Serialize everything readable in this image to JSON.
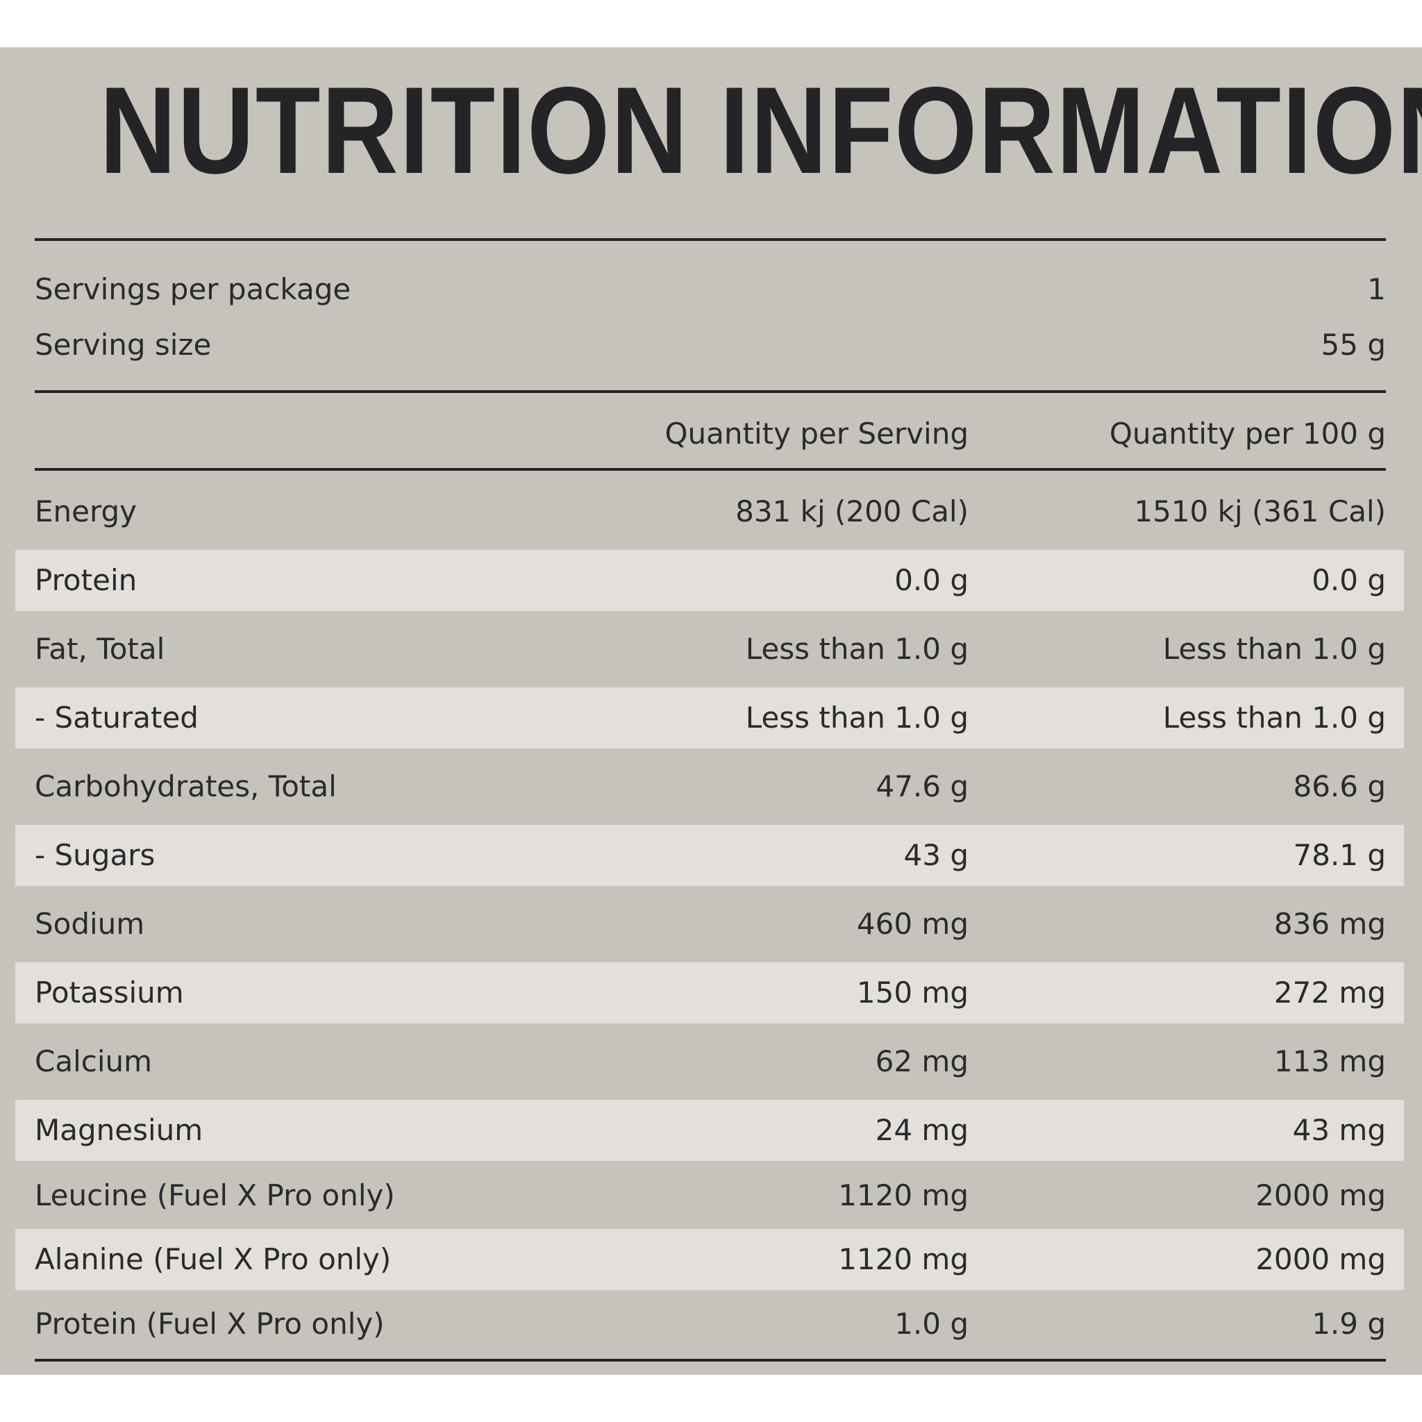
{
  "title": "NUTRITION INFORMATION",
  "servings_per_package": {
    "label": "Servings per package",
    "value": "1"
  },
  "serving_size": {
    "label": "Serving size",
    "value": "55 g"
  },
  "columns": {
    "per_serving": "Quantity per Serving",
    "per_100g": "Quantity per 100 g"
  },
  "rows": [
    {
      "name": "Energy",
      "per_serving": "831 kj (200 Cal)",
      "per_100g": "1510 kj (361 Cal)"
    },
    {
      "name": "Protein",
      "per_serving": "0.0 g",
      "per_100g": "0.0 g"
    },
    {
      "name": "Fat, Total",
      "per_serving": "Less than 1.0 g",
      "per_100g": "Less than 1.0 g"
    },
    {
      "name": "- Saturated",
      "per_serving": "Less than 1.0 g",
      "per_100g": "Less than 1.0 g"
    },
    {
      "name": "Carbohydrates, Total",
      "per_serving": "47.6 g",
      "per_100g": "86.6 g"
    },
    {
      "name": "- Sugars",
      "per_serving": "43 g",
      "per_100g": "78.1 g"
    },
    {
      "name": "Sodium",
      "per_serving": "460 mg",
      "per_100g": "836 mg"
    },
    {
      "name": "Potassium",
      "per_serving": "150 mg",
      "per_100g": "272 mg"
    },
    {
      "name": "Calcium",
      "per_serving": "62 mg",
      "per_100g": "113 mg"
    },
    {
      "name": "Magnesium",
      "per_serving": "24 mg",
      "per_100g": "43 mg"
    },
    {
      "name": "Leucine (Fuel X Pro only)",
      "per_serving": "1120 mg",
      "per_100g": "2000 mg"
    },
    {
      "name": "Alanine (Fuel X Pro only)",
      "per_serving": "1120 mg",
      "per_100g": "2000 mg"
    },
    {
      "name": "Protein (Fuel X Pro only)",
      "per_serving": "1.0 g",
      "per_100g": "1.9 g"
    }
  ]
}
